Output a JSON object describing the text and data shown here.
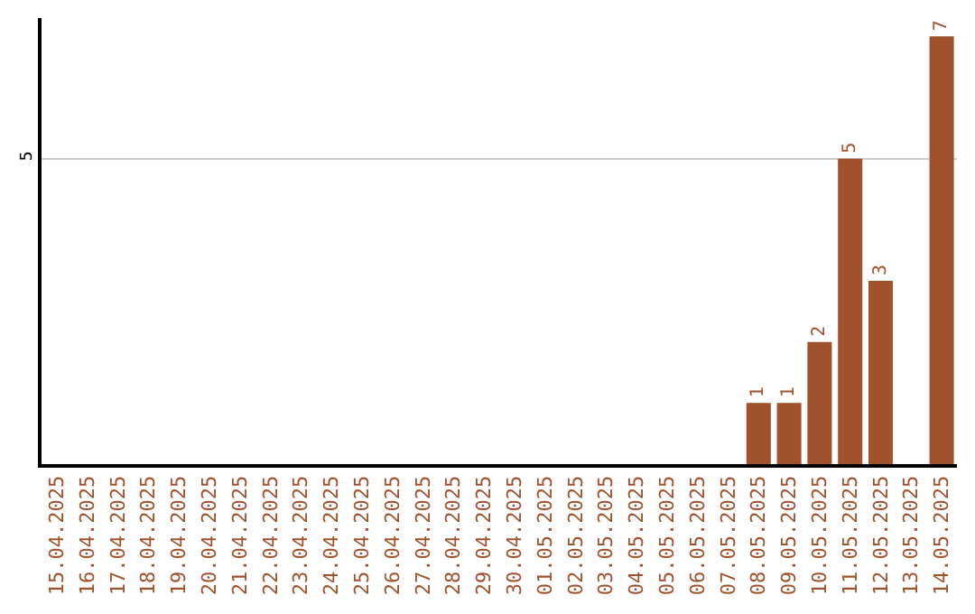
{
  "chart_data": {
    "type": "bar",
    "categories": [
      "15.04.2025",
      "16.04.2025",
      "17.04.2025",
      "18.04.2025",
      "19.04.2025",
      "20.04.2025",
      "21.04.2025",
      "22.04.2025",
      "23.04.2025",
      "24.04.2025",
      "25.04.2025",
      "26.04.2025",
      "27.04.2025",
      "28.04.2025",
      "29.04.2025",
      "30.04.2025",
      "01.05.2025",
      "02.05.2025",
      "03.05.2025",
      "04.05.2025",
      "05.05.2025",
      "06.05.2025",
      "07.05.2025",
      "08.05.2025",
      "09.05.2025",
      "10.05.2025",
      "11.05.2025",
      "12.05.2025",
      "13.05.2025",
      "14.05.2025"
    ],
    "values": [
      null,
      null,
      null,
      null,
      null,
      null,
      null,
      null,
      null,
      null,
      null,
      null,
      null,
      null,
      null,
      null,
      null,
      null,
      null,
      null,
      null,
      null,
      null,
      1,
      1,
      2,
      5,
      3,
      null,
      7
    ],
    "color": "#a0522d",
    "ylim": [
      0,
      7.3
    ],
    "yticks": [
      5
    ],
    "grid": "y",
    "data_labels": true,
    "legend": false
  }
}
